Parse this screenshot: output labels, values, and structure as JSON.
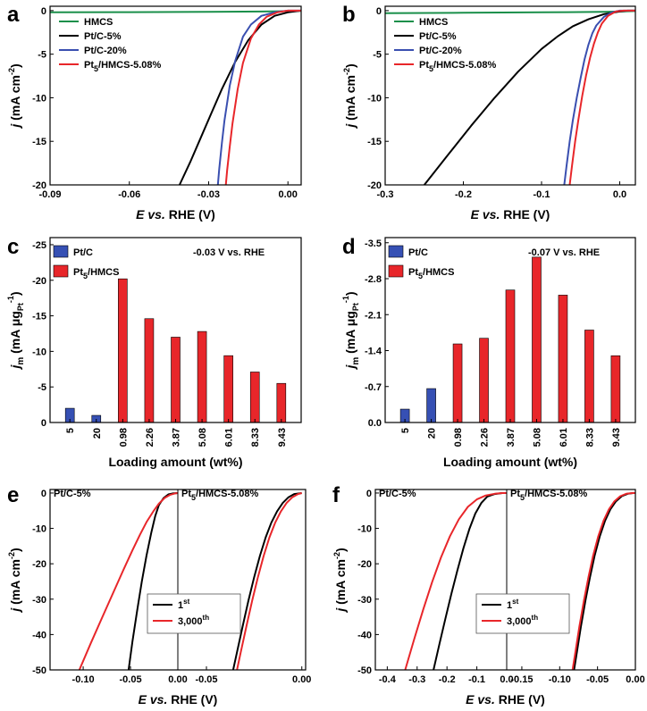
{
  "figure": {
    "panels": [
      {
        "id": "a",
        "label": "a",
        "xlabel": {
          "prefix": "E",
          "mid": " vs.",
          "suffix": " RHE (V)"
        },
        "ylabel": {
          "main": "j",
          "unit": " (mA cm",
          "sup": "-2",
          "close": ")"
        },
        "xticks": [
          "-0.09",
          "-0.06",
          "-0.03",
          "0.00"
        ],
        "yticks": [
          "0",
          "-5",
          "-10",
          "-15",
          "-20"
        ],
        "legend": [
          {
            "main": "HMCS",
            "sub": "",
            "rest": ""
          },
          {
            "main": "Pt/C-5%",
            "sub": "",
            "rest": ""
          },
          {
            "main": "Pt/C-20%",
            "sub": "",
            "rest": ""
          },
          {
            "main": "Pt",
            "sub": "5",
            "rest": "/HMCS-5.08%"
          }
        ]
      },
      {
        "id": "b",
        "label": "b",
        "xlabel": {
          "prefix": "E",
          "mid": " vs.",
          "suffix": " RHE (V)"
        },
        "ylabel": {
          "main": "j",
          "unit": " (mA cm",
          "sup": "-2",
          "close": ")"
        },
        "xticks": [
          "-0.3",
          "-0.2",
          "-0.1",
          "0.0"
        ],
        "yticks": [
          "0",
          "-5",
          "-10",
          "-15",
          "-20"
        ],
        "legend": [
          {
            "main": "HMCS",
            "sub": "",
            "rest": ""
          },
          {
            "main": "Pt/C-5%",
            "sub": "",
            "rest": ""
          },
          {
            "main": "Pt/C-20%",
            "sub": "",
            "rest": ""
          },
          {
            "main": "Pt",
            "sub": "5",
            "rest": "/HMCS-5.08%"
          }
        ]
      },
      {
        "id": "c",
        "label": "c",
        "annotation": "-0.03 V vs. RHE",
        "xlabel": {
          "prefix": "Loading amount (wt%)",
          "mid": "",
          "suffix": ""
        },
        "ylabel": {
          "main": "j",
          "msub": "m",
          "unit": " (mA μg",
          "sub2": "Pt",
          "sup": "-1",
          "close": ")"
        },
        "xticks": [
          "5",
          "20",
          "0.98",
          "2.26",
          "3.87",
          "5.08",
          "6.01",
          "8.33",
          "9.43"
        ],
        "yticks": [
          "0",
          "-5",
          "-10",
          "-15",
          "-20",
          "-25"
        ],
        "legend": [
          {
            "main": "Pt/C",
            "sub": "",
            "rest": ""
          },
          {
            "main": "Pt",
            "sub": "5",
            "rest": "/HMCS"
          }
        ]
      },
      {
        "id": "d",
        "label": "d",
        "annotation": "-0.07 V vs. RHE",
        "xlabel": {
          "prefix": "Loading amount (wt%)",
          "mid": "",
          "suffix": ""
        },
        "ylabel": {
          "main": "j",
          "msub": "m",
          "unit": " (mA μg",
          "sub2": "Pt",
          "sup": "-1",
          "close": ")"
        },
        "xticks": [
          "5",
          "20",
          "0.98",
          "2.26",
          "3.87",
          "5.08",
          "6.01",
          "8.33",
          "9.43"
        ],
        "yticks": [
          "0.0",
          "-0.7",
          "-1.4",
          "-2.1",
          "-2.8",
          "-3.5"
        ],
        "legend": [
          {
            "main": "Pt/C",
            "sub": "",
            "rest": ""
          },
          {
            "main": "Pt",
            "sub": "5",
            "rest": "/HMCS"
          }
        ]
      },
      {
        "id": "e",
        "label": "e",
        "left_label": "Pt/C-5%",
        "right_label": {
          "main": "Pt",
          "sub": "5",
          "rest": "/HMCS-5.08%"
        },
        "xlabel": {
          "prefix": "E",
          "mid": " vs.",
          "suffix": " RHE (V)"
        },
        "ylabel": {
          "main": "j",
          "unit": " (mA cm",
          "sup": "-2",
          "close": ")"
        },
        "xticks": [
          "-0.10",
          "-0.05",
          "0.00",
          "-0.05",
          "0.00"
        ],
        "yticks": [
          "0",
          "-10",
          "-20",
          "-30",
          "-40",
          "-50"
        ],
        "legend": [
          {
            "main": "1",
            "sup": "st"
          },
          {
            "main": "3,000",
            "sup": "th"
          }
        ]
      },
      {
        "id": "f",
        "label": "f",
        "left_label": "Pt/C-5%",
        "right_label": {
          "main": "Pt",
          "sub": "5",
          "rest": "/HMCS-5.08%"
        },
        "xlabel": {
          "prefix": "E",
          "mid": " vs.",
          "suffix": " RHE (V)"
        },
        "ylabel": {
          "main": "j",
          "unit": " (mA cm",
          "sup": "-2",
          "close": ")"
        },
        "xticks": [
          "-0.4",
          "-0.3",
          "-0.2",
          "-0.1",
          "0.0",
          "-0.15",
          "-0.10",
          "-0.05",
          "0.00"
        ],
        "yticks": [
          "0",
          "-10",
          "-20",
          "-30",
          "-40",
          "-50"
        ],
        "legend": [
          {
            "main": "1",
            "sup": "st"
          },
          {
            "main": "3,000",
            "sup": "th"
          }
        ]
      }
    ]
  },
  "colors": {
    "HMCS": "#1a8f4a",
    "Pt/C-5%": "#000000",
    "Pt/C-20%": "#3a4fb0",
    "Pt5/HMCS-5.08%": "#e8262a",
    "Pt/C": "#3650b4",
    "Pt5/HMCS": "#e8262a",
    "1st": "#000000",
    "3000th": "#e8262a"
  },
  "chart_data": [
    {
      "type": "line",
      "panel": "a",
      "xlim": [
        -0.09,
        0.005
      ],
      "ylim": [
        -20,
        0.5
      ],
      "series": [
        {
          "name": "HMCS",
          "x": [
            -0.09,
            -0.06,
            -0.03,
            -0.01,
            0.0,
            0.005
          ],
          "y": [
            -0.2,
            -0.18,
            -0.15,
            -0.1,
            -0.06,
            -0.03
          ]
        },
        {
          "name": "Pt/C-5%",
          "x": [
            -0.041,
            -0.037,
            -0.033,
            -0.029,
            -0.025,
            -0.02,
            -0.015,
            -0.01,
            -0.005,
            0.0,
            0.005
          ],
          "y": [
            -20,
            -17.4,
            -14.6,
            -11.8,
            -9.0,
            -5.9,
            -3.4,
            -1.6,
            -0.6,
            -0.2,
            0.0
          ]
        },
        {
          "name": "Pt/C-20%",
          "x": [
            -0.0265,
            -0.026,
            -0.025,
            -0.024,
            -0.022,
            -0.02,
            -0.017,
            -0.014,
            -0.01,
            -0.005,
            0.0,
            0.005
          ],
          "y": [
            -20,
            -18.2,
            -15.2,
            -12.6,
            -8.6,
            -5.8,
            -3.0,
            -1.6,
            -0.6,
            -0.2,
            0.0,
            0.0
          ]
        },
        {
          "name": "Pt5/HMCS-5.08%",
          "x": [
            -0.0235,
            -0.023,
            -0.022,
            -0.021,
            -0.019,
            -0.017,
            -0.014,
            -0.011,
            -0.008,
            -0.004,
            0.0,
            0.005
          ],
          "y": [
            -20,
            -18.3,
            -15.6,
            -13.0,
            -9.0,
            -6.0,
            -3.2,
            -1.6,
            -0.7,
            -0.2,
            0.0,
            0.0
          ]
        }
      ]
    },
    {
      "type": "line",
      "panel": "b",
      "xlim": [
        -0.3,
        0.02
      ],
      "ylim": [
        -20,
        0.5
      ],
      "series": [
        {
          "name": "HMCS",
          "x": [
            -0.3,
            -0.2,
            -0.1,
            -0.02,
            0.0,
            0.02
          ],
          "y": [
            -0.3,
            -0.25,
            -0.2,
            -0.15,
            -0.1,
            -0.05
          ]
        },
        {
          "name": "Pt/C-5%",
          "x": [
            -0.25,
            -0.22,
            -0.19,
            -0.16,
            -0.13,
            -0.1,
            -0.08,
            -0.06,
            -0.04,
            -0.02,
            0.0,
            0.01,
            0.02
          ],
          "y": [
            -20,
            -16.6,
            -13.2,
            -10.0,
            -7.0,
            -4.4,
            -3.0,
            -1.8,
            -1.0,
            -0.4,
            -0.1,
            0.0,
            0.0
          ]
        },
        {
          "name": "Pt/C-20%",
          "x": [
            -0.071,
            -0.068,
            -0.064,
            -0.06,
            -0.055,
            -0.05,
            -0.045,
            -0.04,
            -0.035,
            -0.03,
            -0.02,
            -0.01,
            0.0,
            0.02
          ],
          "y": [
            -20,
            -17.8,
            -15.0,
            -12.6,
            -10.0,
            -7.7,
            -5.6,
            -3.9,
            -2.6,
            -1.7,
            -0.7,
            -0.2,
            0.0,
            0.0
          ]
        },
        {
          "name": "Pt5/HMCS-5.08%",
          "x": [
            -0.064,
            -0.061,
            -0.057,
            -0.053,
            -0.048,
            -0.043,
            -0.038,
            -0.033,
            -0.028,
            -0.023,
            -0.015,
            -0.005,
            0.005,
            0.02
          ],
          "y": [
            -20,
            -17.8,
            -15.0,
            -12.6,
            -9.8,
            -7.4,
            -5.4,
            -3.8,
            -2.5,
            -1.5,
            -0.6,
            -0.1,
            0.0,
            0.0
          ]
        }
      ]
    },
    {
      "type": "bar",
      "panel": "c",
      "categories": [
        "5",
        "20",
        "0.98",
        "2.26",
        "3.87",
        "5.08",
        "6.01",
        "8.33",
        "9.43"
      ],
      "ylim": [
        0,
        -26
      ],
      "series": [
        {
          "name": "Pt/C",
          "values": [
            -2.0,
            -1.0,
            null,
            null,
            null,
            null,
            null,
            null,
            null
          ]
        },
        {
          "name": "Pt5/HMCS",
          "values": [
            null,
            null,
            -20.2,
            -14.6,
            -12.0,
            -12.8,
            -9.4,
            -7.1,
            -5.5
          ]
        }
      ]
    },
    {
      "type": "bar",
      "panel": "d",
      "categories": [
        "5",
        "20",
        "0.98",
        "2.26",
        "3.87",
        "5.08",
        "6.01",
        "8.33",
        "9.43"
      ],
      "ylim": [
        0,
        -3.6
      ],
      "series": [
        {
          "name": "Pt/C",
          "values": [
            -0.26,
            -0.66,
            null,
            null,
            null,
            null,
            null,
            null,
            null
          ]
        },
        {
          "name": "Pt5/HMCS",
          "values": [
            null,
            null,
            -1.53,
            -1.64,
            -2.58,
            -3.22,
            -2.48,
            -1.8,
            -1.3
          ]
        }
      ]
    },
    {
      "type": "line",
      "panel": "e",
      "subplots": [
        {
          "region": "left (Pt/C-5%)",
          "xlim": [
            -0.135,
            0.0
          ],
          "ylim": [
            -50,
            1
          ],
          "series": [
            {
              "name": "1st",
              "x": [
                -0.052,
                -0.048,
                -0.043,
                -0.038,
                -0.033,
                -0.028,
                -0.024,
                -0.02,
                -0.015,
                -0.01,
                -0.005,
                0.0
              ],
              "y": [
                -50,
                -42.0,
                -33.2,
                -25.0,
                -17.6,
                -11.2,
                -6.6,
                -3.4,
                -1.4,
                -0.4,
                -0.1,
                0.0
              ]
            },
            {
              "name": "3,000th",
              "x": [
                -0.104,
                -0.092,
                -0.08,
                -0.068,
                -0.058,
                -0.048,
                -0.04,
                -0.033,
                -0.026,
                -0.02,
                -0.014,
                -0.008,
                -0.003,
                0.0
              ],
              "y": [
                -50,
                -42.5,
                -35.2,
                -28.0,
                -22.0,
                -16.2,
                -11.8,
                -8.2,
                -5.2,
                -3.0,
                -1.4,
                -0.5,
                -0.1,
                0.0
              ]
            }
          ]
        },
        {
          "region": "right (Pt5/HMCS-5.08%)",
          "xlim": [
            -0.065,
            0.002
          ],
          "ylim": [
            -50,
            1
          ],
          "series": [
            {
              "name": "1st",
              "x": [
                -0.036,
                -0.034,
                -0.031,
                -0.028,
                -0.025,
                -0.022,
                -0.019,
                -0.016,
                -0.013,
                -0.01,
                -0.007,
                -0.004,
                0.0
              ],
              "y": [
                -50,
                -45.0,
                -37.6,
                -30.4,
                -23.8,
                -17.8,
                -12.6,
                -8.4,
                -5.2,
                -2.8,
                -1.2,
                -0.3,
                0.0
              ]
            },
            {
              "name": "3,000th",
              "x": [
                -0.034,
                -0.032,
                -0.029,
                -0.026,
                -0.023,
                -0.02,
                -0.017,
                -0.014,
                -0.011,
                -0.008,
                -0.005,
                -0.002,
                0.0
              ],
              "y": [
                -50,
                -45.0,
                -37.6,
                -30.4,
                -23.8,
                -17.8,
                -12.6,
                -8.4,
                -5.2,
                -2.8,
                -1.2,
                -0.3,
                0.0
              ]
            }
          ]
        }
      ]
    },
    {
      "type": "line",
      "panel": "f",
      "subplots": [
        {
          "region": "left (Pt/C-5%)",
          "xlim": [
            -0.44,
            0.0
          ],
          "ylim": [
            -50,
            1
          ],
          "series": [
            {
              "name": "1st",
              "x": [
                -0.245,
                -0.225,
                -0.205,
                -0.185,
                -0.165,
                -0.145,
                -0.125,
                -0.105,
                -0.085,
                -0.065,
                -0.04,
                -0.015,
                0.0
              ],
              "y": [
                -50,
                -42.6,
                -35.4,
                -28.4,
                -21.8,
                -15.6,
                -10.2,
                -5.8,
                -2.8,
                -1.0,
                -0.3,
                0.0,
                0.0
              ]
            },
            {
              "name": "3,000th",
              "x": [
                -0.34,
                -0.31,
                -0.28,
                -0.25,
                -0.22,
                -0.19,
                -0.16,
                -0.13,
                -0.1,
                -0.07,
                -0.04,
                -0.015,
                0.0
              ],
              "y": [
                -50,
                -41.4,
                -33.0,
                -25.2,
                -18.2,
                -12.2,
                -7.4,
                -3.9,
                -1.8,
                -0.7,
                -0.2,
                0.0,
                0.0
              ]
            }
          ]
        },
        {
          "region": "right (Pt5/HMCS-5.08%)",
          "xlim": [
            -0.17,
            0.0
          ],
          "ylim": [
            -50,
            1
          ],
          "series": [
            {
              "name": "1st",
              "x": [
                -0.081,
                -0.077,
                -0.072,
                -0.066,
                -0.06,
                -0.054,
                -0.047,
                -0.04,
                -0.033,
                -0.026,
                -0.018,
                -0.01,
                -0.003,
                0.0
              ],
              "y": [
                -50,
                -44.6,
                -37.8,
                -30.4,
                -23.8,
                -17.8,
                -12.2,
                -7.8,
                -4.6,
                -2.4,
                -0.9,
                -0.2,
                0.0,
                0.0
              ]
            },
            {
              "name": "3,000th",
              "x": [
                -0.083,
                -0.079,
                -0.074,
                -0.068,
                -0.062,
                -0.056,
                -0.049,
                -0.042,
                -0.035,
                -0.028,
                -0.02,
                -0.012,
                -0.004,
                0.0
              ],
              "y": [
                -50,
                -44.6,
                -37.8,
                -30.4,
                -23.8,
                -17.8,
                -12.2,
                -7.8,
                -4.6,
                -2.4,
                -0.9,
                -0.2,
                0.0,
                0.0
              ]
            }
          ]
        }
      ]
    }
  ]
}
